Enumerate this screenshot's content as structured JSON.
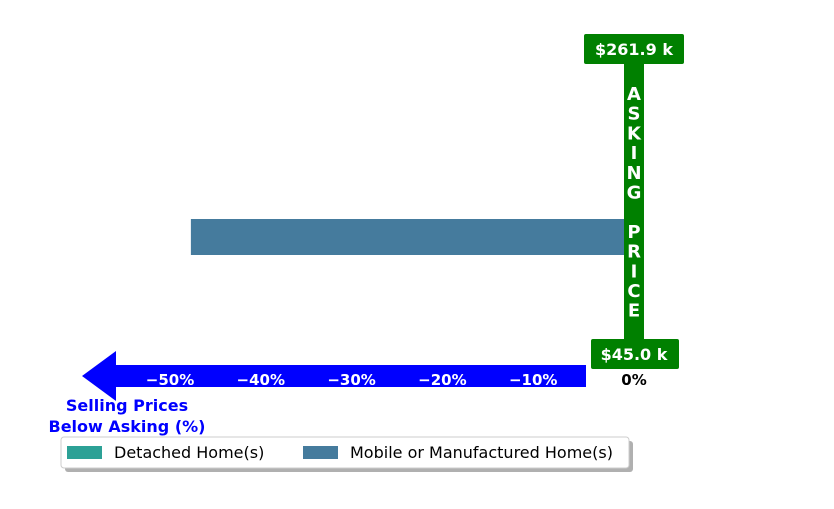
{
  "chart_data": {
    "type": "bar",
    "orientation": "horizontal",
    "series": [
      {
        "name": "Detached Home(s)",
        "color": "#2ca196",
        "value": 0
      },
      {
        "name": "Mobile or Manufactured Home(s)",
        "color": "#457b9d",
        "value": -47.7
      }
    ],
    "xlim": [
      -50,
      0
    ],
    "xticks": [
      {
        "value": -50,
        "label": "−50%"
      },
      {
        "value": -40,
        "label": "−40%"
      },
      {
        "value": -30,
        "label": "−30%"
      },
      {
        "value": -20,
        "label": "−20%"
      },
      {
        "value": -10,
        "label": "−10%"
      }
    ],
    "zero_label": "0%",
    "xlabel_lines": [
      "Selling Prices",
      "Below Asking (%)"
    ],
    "asking_price": {
      "top_label": "$261.9 k",
      "bottom_label": "$45.0 k",
      "letters": [
        "A",
        "S",
        "K",
        "I",
        "N",
        "G",
        " ",
        "P",
        "R",
        "I",
        "C",
        "E"
      ],
      "color": "#008000"
    },
    "axis_arrow_color": "#0000ff",
    "legend": {
      "position": "bottom-left",
      "columns": 2
    }
  }
}
